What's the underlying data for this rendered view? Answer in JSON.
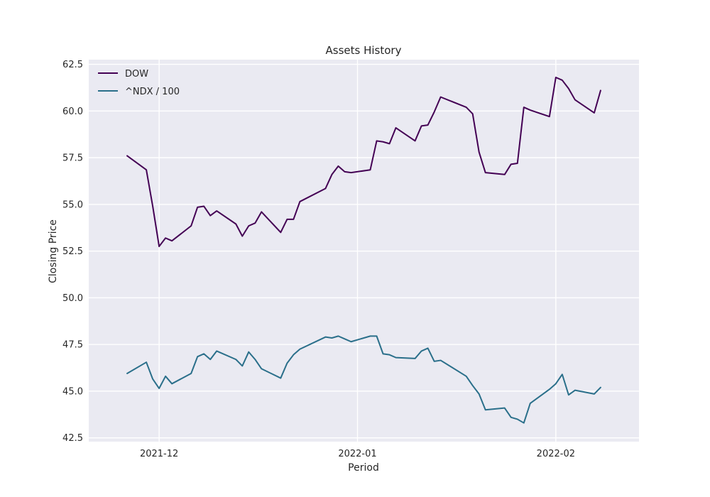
{
  "chart_data": {
    "type": "line",
    "title": "Assets History",
    "xlabel": "Period",
    "ylabel": "Closing Price",
    "ylim": [
      42.3,
      62.75
    ],
    "xlim": [
      "2021-11-20",
      "2022-02-14"
    ],
    "grid": true,
    "legend_position": "top-left",
    "y_ticks": [
      "42.5",
      "45.0",
      "47.5",
      "50.0",
      "52.5",
      "55.0",
      "57.5",
      "60.0",
      "62.5"
    ],
    "x_ticks": [
      {
        "date": "2021-12-01",
        "label": "2021-12"
      },
      {
        "date": "2022-01-01",
        "label": "2022-01"
      },
      {
        "date": "2022-02-01",
        "label": "2022-02"
      }
    ],
    "colors": {
      "background": "#eaeaf2",
      "grid": "#ffffff",
      "DOW": "#440154",
      "NDX": "#2a6f8a"
    },
    "series": [
      {
        "name": "DOW",
        "color": "#440154",
        "points": [
          [
            "2021-11-26",
            57.6
          ],
          [
            "2021-11-29",
            56.85
          ],
          [
            "2021-11-30",
            54.9
          ],
          [
            "2021-12-01",
            52.75
          ],
          [
            "2021-12-02",
            53.2
          ],
          [
            "2021-12-03",
            53.05
          ],
          [
            "2021-12-06",
            53.85
          ],
          [
            "2021-12-07",
            54.85
          ],
          [
            "2021-12-08",
            54.9
          ],
          [
            "2021-12-09",
            54.4
          ],
          [
            "2021-12-10",
            54.65
          ],
          [
            "2021-12-13",
            53.95
          ],
          [
            "2021-12-14",
            53.3
          ],
          [
            "2021-12-15",
            53.85
          ],
          [
            "2021-12-16",
            54.0
          ],
          [
            "2021-12-17",
            54.6
          ],
          [
            "2021-12-20",
            53.5
          ],
          [
            "2021-12-21",
            54.2
          ],
          [
            "2021-12-22",
            54.2
          ],
          [
            "2021-12-23",
            55.15
          ],
          [
            "2021-12-27",
            55.85
          ],
          [
            "2021-12-28",
            56.6
          ],
          [
            "2021-12-29",
            57.05
          ],
          [
            "2021-12-30",
            56.75
          ],
          [
            "2021-12-31",
            56.7
          ],
          [
            "2022-01-03",
            56.85
          ],
          [
            "2022-01-04",
            58.4
          ],
          [
            "2022-01-05",
            58.35
          ],
          [
            "2022-01-06",
            58.25
          ],
          [
            "2022-01-07",
            59.1
          ],
          [
            "2022-01-10",
            58.4
          ],
          [
            "2022-01-11",
            59.2
          ],
          [
            "2022-01-12",
            59.25
          ],
          [
            "2022-01-13",
            59.95
          ],
          [
            "2022-01-14",
            60.75
          ],
          [
            "2022-01-18",
            60.2
          ],
          [
            "2022-01-19",
            59.85
          ],
          [
            "2022-01-20",
            57.8
          ],
          [
            "2022-01-21",
            56.7
          ],
          [
            "2022-01-24",
            56.6
          ],
          [
            "2022-01-25",
            57.15
          ],
          [
            "2022-01-26",
            57.2
          ],
          [
            "2022-01-27",
            60.2
          ],
          [
            "2022-01-28",
            60.05
          ],
          [
            "2022-01-31",
            59.7
          ],
          [
            "2022-02-01",
            61.8
          ],
          [
            "2022-02-02",
            61.65
          ],
          [
            "2022-02-03",
            61.2
          ],
          [
            "2022-02-04",
            60.6
          ],
          [
            "2022-02-07",
            59.9
          ],
          [
            "2022-02-08",
            61.1
          ]
        ]
      },
      {
        "name": "^NDX / 100",
        "color": "#2a6f8a",
        "points": [
          [
            "2021-11-26",
            45.95
          ],
          [
            "2021-11-29",
            46.55
          ],
          [
            "2021-11-30",
            45.65
          ],
          [
            "2021-12-01",
            45.15
          ],
          [
            "2021-12-02",
            45.8
          ],
          [
            "2021-12-03",
            45.4
          ],
          [
            "2021-12-06",
            45.95
          ],
          [
            "2021-12-07",
            46.85
          ],
          [
            "2021-12-08",
            47.0
          ],
          [
            "2021-12-09",
            46.7
          ],
          [
            "2021-12-10",
            47.15
          ],
          [
            "2021-12-13",
            46.7
          ],
          [
            "2021-12-14",
            46.35
          ],
          [
            "2021-12-15",
            47.1
          ],
          [
            "2021-12-16",
            46.7
          ],
          [
            "2021-12-17",
            46.2
          ],
          [
            "2021-12-20",
            45.7
          ],
          [
            "2021-12-21",
            46.5
          ],
          [
            "2021-12-22",
            46.95
          ],
          [
            "2021-12-23",
            47.25
          ],
          [
            "2021-12-27",
            47.9
          ],
          [
            "2021-12-28",
            47.85
          ],
          [
            "2021-12-29",
            47.95
          ],
          [
            "2021-12-30",
            47.8
          ],
          [
            "2021-12-31",
            47.65
          ],
          [
            "2022-01-03",
            47.95
          ],
          [
            "2022-01-04",
            47.95
          ],
          [
            "2022-01-05",
            47.0
          ],
          [
            "2022-01-06",
            46.95
          ],
          [
            "2022-01-07",
            46.8
          ],
          [
            "2022-01-10",
            46.75
          ],
          [
            "2022-01-11",
            47.15
          ],
          [
            "2022-01-12",
            47.3
          ],
          [
            "2022-01-13",
            46.6
          ],
          [
            "2022-01-14",
            46.65
          ],
          [
            "2022-01-18",
            45.8
          ],
          [
            "2022-01-19",
            45.3
          ],
          [
            "2022-01-20",
            44.85
          ],
          [
            "2022-01-21",
            44.0
          ],
          [
            "2022-01-24",
            44.1
          ],
          [
            "2022-01-25",
            43.6
          ],
          [
            "2022-01-26",
            43.5
          ],
          [
            "2022-01-27",
            43.3
          ],
          [
            "2022-01-28",
            44.35
          ],
          [
            "2022-01-31",
            45.1
          ],
          [
            "2022-02-01",
            45.4
          ],
          [
            "2022-02-02",
            45.9
          ],
          [
            "2022-02-03",
            44.8
          ],
          [
            "2022-02-04",
            45.05
          ],
          [
            "2022-02-07",
            44.85
          ],
          [
            "2022-02-08",
            45.2
          ]
        ]
      }
    ]
  }
}
